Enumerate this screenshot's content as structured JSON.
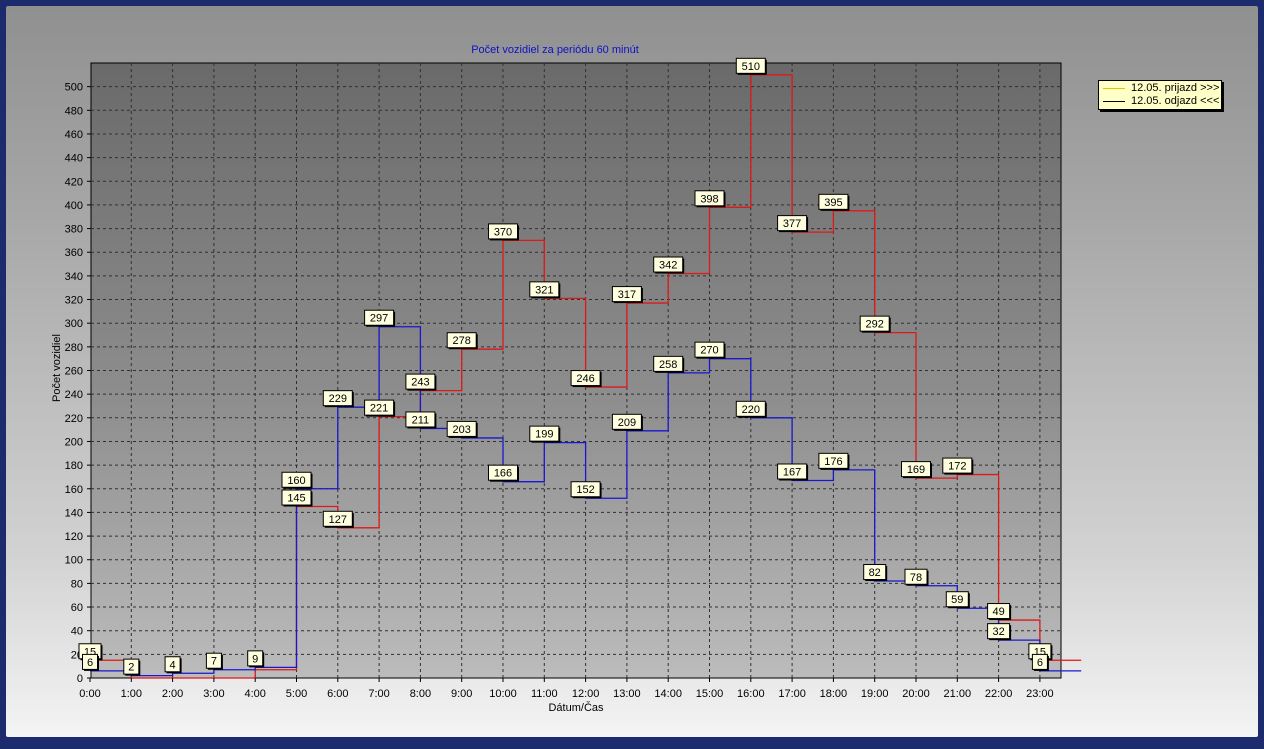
{
  "chart_data": {
    "type": "line",
    "step": true,
    "title": "Počet vozidiel za periódu 60 minút",
    "xlabel": "Dátum/Čas",
    "ylabel": "Počet vozidiel",
    "categories": [
      "0:00",
      "1:00",
      "2:00",
      "3:00",
      "4:00",
      "5:00",
      "6:00",
      "7:00",
      "8:00",
      "9:00",
      "10:00",
      "11:00",
      "12:00",
      "13:00",
      "14:00",
      "15:00",
      "16:00",
      "17:00",
      "18:00",
      "19:00",
      "20:00",
      "21:00",
      "22:00",
      "23:00"
    ],
    "ylim": [
      0,
      520
    ],
    "yticks": [
      0,
      20,
      40,
      60,
      80,
      100,
      120,
      140,
      160,
      180,
      200,
      220,
      240,
      260,
      280,
      300,
      320,
      340,
      360,
      380,
      400,
      420,
      440,
      460,
      480,
      500
    ],
    "grid": true,
    "legend_position": "top-right outside",
    "series": [
      {
        "name": "12.05.  prijazd >>>",
        "color": "#e01818",
        "values": [
          15,
          0,
          0,
          0,
          7,
          145,
          127,
          221,
          243,
          278,
          370,
          321,
          246,
          317,
          342,
          398,
          510,
          377,
          395,
          292,
          169,
          172,
          49,
          15
        ]
      },
      {
        "name": "12.05.  odjazd <<<",
        "color": "#1818d0",
        "values": [
          6,
          2,
          4,
          7,
          9,
          160,
          229,
          297,
          211,
          203,
          166,
          199,
          152,
          209,
          258,
          270,
          220,
          167,
          176,
          82,
          78,
          59,
          32,
          6
        ]
      }
    ],
    "data_labels": [
      {
        "series": 0,
        "index": 0,
        "text": "15"
      },
      {
        "series": 1,
        "index": 0,
        "text": "6"
      },
      {
        "series": 1,
        "index": 1,
        "text": "2"
      },
      {
        "series": 1,
        "index": 2,
        "text": "4"
      },
      {
        "series": 1,
        "index": 3,
        "text": "7"
      },
      {
        "series": 1,
        "index": 4,
        "text": "9"
      },
      {
        "series": 1,
        "index": 5,
        "text": "160"
      },
      {
        "series": 0,
        "index": 5,
        "text": "145"
      },
      {
        "series": 1,
        "index": 6,
        "text": "229"
      },
      {
        "series": 0,
        "index": 6,
        "text": "127"
      },
      {
        "series": 1,
        "index": 7,
        "text": "297"
      },
      {
        "series": 0,
        "index": 7,
        "text": "221"
      },
      {
        "series": 0,
        "index": 8,
        "text": "243"
      },
      {
        "series": 1,
        "index": 8,
        "text": "211"
      },
      {
        "series": 0,
        "index": 9,
        "text": "278"
      },
      {
        "series": 1,
        "index": 9,
        "text": "203"
      },
      {
        "series": 0,
        "index": 10,
        "text": "370"
      },
      {
        "series": 1,
        "index": 10,
        "text": "166"
      },
      {
        "series": 0,
        "index": 11,
        "text": "321"
      },
      {
        "series": 1,
        "index": 11,
        "text": "199"
      },
      {
        "series": 0,
        "index": 12,
        "text": "246"
      },
      {
        "series": 1,
        "index": 12,
        "text": "152"
      },
      {
        "series": 0,
        "index": 13,
        "text": "317"
      },
      {
        "series": 1,
        "index": 13,
        "text": "209"
      },
      {
        "series": 0,
        "index": 14,
        "text": "342"
      },
      {
        "series": 1,
        "index": 14,
        "text": "258"
      },
      {
        "series": 0,
        "index": 15,
        "text": "398"
      },
      {
        "series": 1,
        "index": 15,
        "text": "270"
      },
      {
        "series": 0,
        "index": 16,
        "text": "510"
      },
      {
        "series": 1,
        "index": 16,
        "text": "220"
      },
      {
        "series": 0,
        "index": 17,
        "text": "377"
      },
      {
        "series": 1,
        "index": 17,
        "text": "167"
      },
      {
        "series": 0,
        "index": 18,
        "text": "395"
      },
      {
        "series": 1,
        "index": 18,
        "text": "176"
      },
      {
        "series": 0,
        "index": 19,
        "text": "292"
      },
      {
        "series": 1,
        "index": 19,
        "text": "82"
      },
      {
        "series": 0,
        "index": 20,
        "text": "169"
      },
      {
        "series": 1,
        "index": 20,
        "text": "78"
      },
      {
        "series": 0,
        "index": 21,
        "text": "172"
      },
      {
        "series": 1,
        "index": 21,
        "text": "59"
      },
      {
        "series": 0,
        "index": 22,
        "text": "49"
      },
      {
        "series": 1,
        "index": 22,
        "text": "32"
      },
      {
        "series": 0,
        "index": 23,
        "text": "15"
      },
      {
        "series": 1,
        "index": 23,
        "text": "6"
      }
    ]
  }
}
